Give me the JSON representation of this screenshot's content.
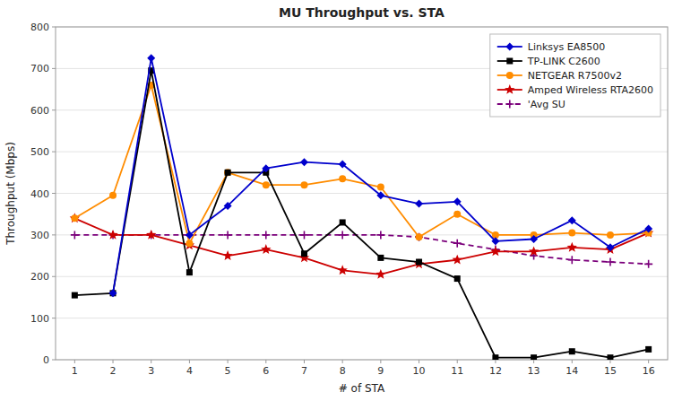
{
  "chart_data": {
    "type": "line",
    "title": "MU Throughput vs. STA",
    "xlabel": "# of STA",
    "ylabel": "Throughput (Mbps)",
    "x": [
      1,
      2,
      3,
      4,
      5,
      6,
      7,
      8,
      9,
      10,
      11,
      12,
      13,
      14,
      15,
      16
    ],
    "series": [
      {
        "name": "Linksys EA8500",
        "color": "#0000CC",
        "marker": "diamond",
        "line_style": "solid",
        "values": [
          null,
          160,
          725,
          300,
          370,
          460,
          475,
          470,
          395,
          375,
          380,
          285,
          290,
          335,
          270,
          315
        ]
      },
      {
        "name": "TP-LINK C2600",
        "color": "#000000",
        "marker": "square",
        "line_style": "solid",
        "values": [
          155,
          160,
          695,
          210,
          450,
          450,
          255,
          330,
          245,
          235,
          195,
          5,
          5,
          20,
          5,
          25
        ]
      },
      {
        "name": "NETGEAR R7500v2",
        "color": "#FF8C00",
        "marker": "circle",
        "line_style": "solid",
        "values": [
          340,
          395,
          660,
          280,
          450,
          420,
          420,
          435,
          415,
          295,
          350,
          300,
          300,
          305,
          300,
          305
        ]
      },
      {
        "name": "Amped Wireless RTA2600",
        "color": "#CC0000",
        "marker": "star",
        "line_style": "solid",
        "values": [
          340,
          300,
          300,
          275,
          250,
          265,
          245,
          215,
          205,
          230,
          240,
          260,
          260,
          270,
          265,
          305
        ]
      },
      {
        "name": "'Avg SU",
        "color": "#7B007B",
        "marker": "plus",
        "line_style": "dashed",
        "values": [
          300,
          300,
          300,
          300,
          300,
          300,
          300,
          300,
          300,
          295,
          280,
          265,
          250,
          240,
          235,
          230
        ]
      }
    ],
    "xlim": [
      0.5,
      16.5
    ],
    "xticks": [
      1,
      2,
      3,
      4,
      5,
      6,
      7,
      8,
      9,
      10,
      11,
      12,
      13,
      14,
      15,
      16
    ],
    "ylim": [
      0,
      800
    ],
    "yticks": [
      0,
      100,
      200,
      300,
      400,
      500,
      600,
      700,
      800
    ],
    "grid": true,
    "legend": "upper right"
  }
}
